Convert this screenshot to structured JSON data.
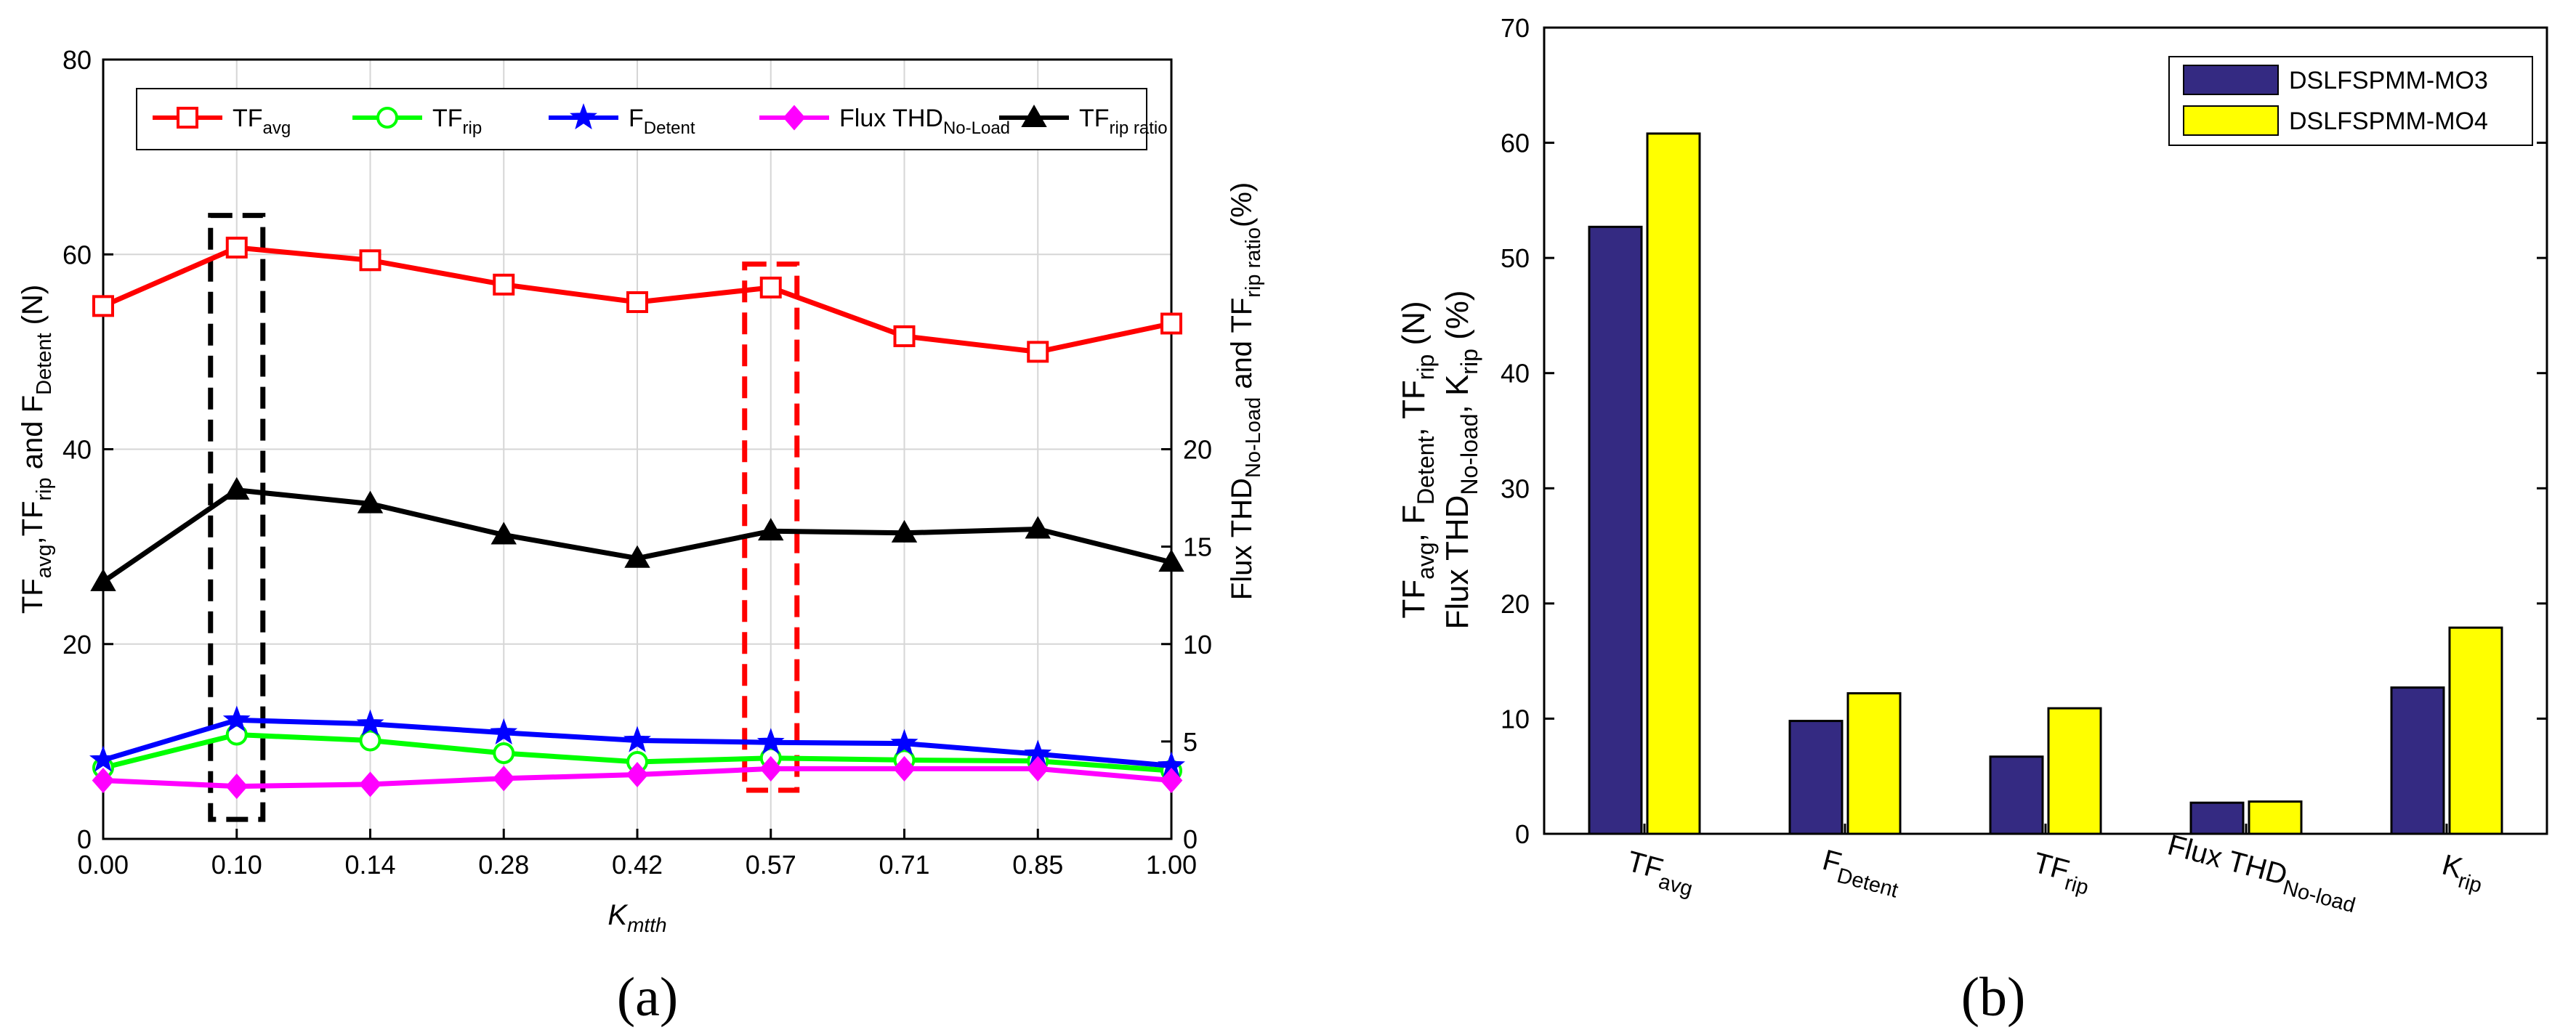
{
  "chart_data": [
    {
      "type": "line",
      "panel_label": "(a)",
      "x_categories": [
        "0.00",
        "0.10",
        "0.14",
        "0.28",
        "0.42",
        "0.57",
        "0.71",
        "0.85",
        "1.00"
      ],
      "xlabel": "K",
      "xlabel_sub": "mtth",
      "ylabel_left": "TF_avg, TF_rip and F_Detent (N)",
      "ylabel_right": "Flux THD_No-Load and TF_rip ratio (%)",
      "ylim_left": [
        0,
        80
      ],
      "yticks_left": [
        0,
        20,
        40,
        60,
        80
      ],
      "ylim_right": [
        0,
        40
      ],
      "yticks_right": [
        0,
        5,
        10,
        15,
        20
      ],
      "grid": true,
      "legend_position": "top",
      "series": [
        {
          "name": "TF",
          "sub": "avg",
          "axis": "left",
          "color": "#ff0000",
          "marker": "square",
          "values": [
            54.7,
            60.7,
            59.4,
            56.9,
            55.1,
            56.6,
            51.6,
            50.0,
            52.9
          ]
        },
        {
          "name": "TF",
          "sub": "rip",
          "axis": "left",
          "color": "#00ff00",
          "marker": "circle",
          "values": [
            7.3,
            10.7,
            10.1,
            8.8,
            7.9,
            8.3,
            8.1,
            8.0,
            7.0
          ]
        },
        {
          "name": "F",
          "sub": "Detent",
          "axis": "left",
          "color": "#0000ff",
          "marker": "star",
          "values": [
            8.1,
            12.2,
            11.8,
            10.9,
            10.1,
            9.9,
            9.8,
            8.7,
            7.5
          ]
        },
        {
          "name": "Flux THD",
          "sub": "No-Load",
          "axis": "right",
          "color": "#ff00ff",
          "marker": "diamond",
          "values": [
            3.0,
            2.7,
            2.8,
            3.1,
            3.3,
            3.6,
            3.6,
            3.6,
            3.0
          ]
        },
        {
          "name": "TF",
          "sub": "rip ratio",
          "axis": "right",
          "color": "#000000",
          "marker": "triangle",
          "values": [
            13.2,
            17.9,
            17.2,
            15.6,
            14.4,
            15.8,
            15.7,
            15.9,
            14.2
          ]
        }
      ],
      "highlight_boxes": [
        {
          "category": "0.10",
          "color": "#000000",
          "y_range_left": [
            2,
            64
          ]
        },
        {
          "category": "0.57",
          "color": "#ff0000",
          "y_range_left": [
            5,
            59
          ]
        }
      ]
    },
    {
      "type": "bar",
      "panel_label": "(b)",
      "categories": [
        {
          "main": "TF",
          "sub": "avg"
        },
        {
          "main": "F",
          "sub": "Detent"
        },
        {
          "main": "TF",
          "sub": "rip"
        },
        {
          "main": "Flux THD",
          "sub": "No-load"
        },
        {
          "main": "K",
          "sub": "rip"
        }
      ],
      "ylabel_line1": "TF_avg, F_Detent, TF_rip (N)",
      "ylabel_line2": "Flux THD_No-load, K_rip (%)",
      "ylim": [
        0,
        70
      ],
      "yticks": [
        0,
        10,
        20,
        30,
        40,
        50,
        60,
        70
      ],
      "grid": false,
      "legend_position": "top-right",
      "series": [
        {
          "name": "DSLFSPMM-MO3",
          "color": "#342a82",
          "values": [
            52.7,
            9.8,
            6.7,
            2.7,
            12.7
          ]
        },
        {
          "name": "DSLFSPMM-MO4",
          "color": "#ffff00",
          "values": [
            60.8,
            12.2,
            10.9,
            2.8,
            17.9
          ]
        }
      ]
    }
  ]
}
